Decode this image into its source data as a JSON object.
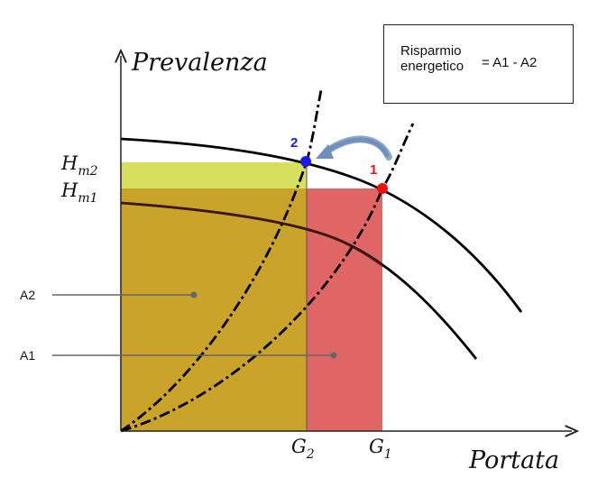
{
  "axes": {
    "y_label": "Prevalenza",
    "x_label": "Portata"
  },
  "ticks": {
    "y": [
      {
        "base": "H",
        "sub": "m2"
      },
      {
        "base": "H",
        "sub": "m1"
      }
    ],
    "x": [
      {
        "base": "G",
        "sub": "2"
      },
      {
        "base": "G",
        "sub": "1"
      }
    ]
  },
  "points": [
    {
      "label": "2",
      "color": "#1a1aee"
    },
    {
      "label": "1",
      "color": "#ee1111"
    }
  ],
  "areas": [
    {
      "label": "A2",
      "color": "#c9a32a"
    },
    {
      "label": "A1",
      "color": "#e06565"
    }
  ],
  "band_color": "#d7df5e",
  "formula": {
    "line1": "Risparmio",
    "line2": "energetico",
    "rhs": "=  A1 - A2"
  }
}
